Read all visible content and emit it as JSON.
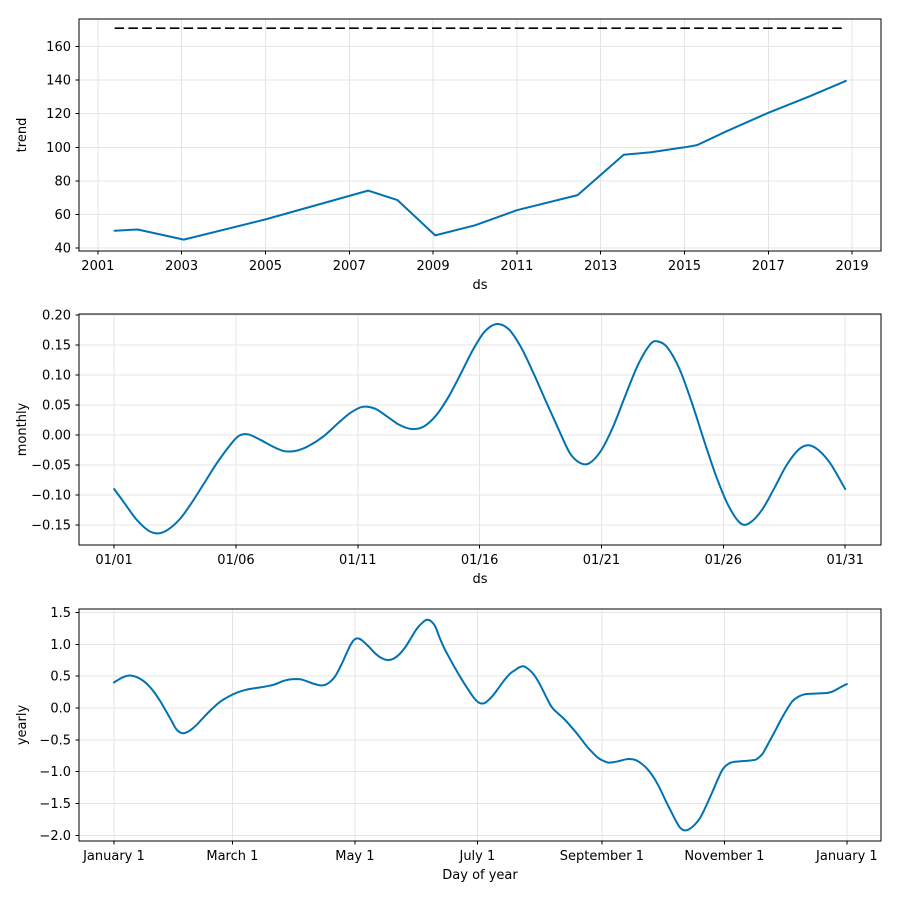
{
  "figure": {
    "kind": "forecast components figure",
    "background": "#ffffff",
    "line_color": "#0072B2",
    "cap_color": "#000000",
    "grid_color": "#e5e5e5",
    "spine_color": "#000000"
  },
  "chart_data": [
    {
      "name": "trend",
      "type": "line",
      "xlabel": "ds",
      "ylabel": "trend",
      "grid": true,
      "legend": "none",
      "xlim": [
        2000.55,
        2019.69
      ],
      "ylim": [
        38.2,
        176.4
      ],
      "xticks": {
        "values": [
          2001,
          2003,
          2005,
          2007,
          2009,
          2011,
          2013,
          2015,
          2017,
          2019
        ],
        "labels": [
          "2001",
          "2003",
          "2005",
          "2007",
          "2009",
          "2011",
          "2013",
          "2015",
          "2017",
          "2019"
        ]
      },
      "yticks": {
        "values": [
          40,
          60,
          80,
          100,
          120,
          140,
          160
        ],
        "labels": [
          "40",
          "60",
          "80",
          "100",
          "120",
          "140",
          "160"
        ]
      },
      "series": [
        {
          "name": "trend",
          "color": "#0072B2",
          "width": 2,
          "smooth": false,
          "points": [
            [
              2001.4,
              50.3
            ],
            [
              2001.95,
              51.0
            ],
            [
              2003.05,
              45.0
            ],
            [
              2005.0,
              57.0
            ],
            [
              2007.45,
              74.2
            ],
            [
              2008.15,
              68.5
            ],
            [
              2009.05,
              47.5
            ],
            [
              2010.0,
              53.5
            ],
            [
              2011.0,
              62.5
            ],
            [
              2012.45,
              71.5
            ],
            [
              2013.55,
              95.5
            ],
            [
              2014.2,
              97.0
            ],
            [
              2015.0,
              100.0
            ],
            [
              2015.3,
              101.3
            ],
            [
              2016.0,
              109.5
            ],
            [
              2017.0,
              120.5
            ],
            [
              2018.0,
              130.5
            ],
            [
              2018.85,
              139.5
            ]
          ]
        }
      ],
      "overlays": [
        {
          "name": "capacity-line",
          "style": "dashed",
          "color": "#000000",
          "width": 1.6,
          "y": 170.9,
          "x_range": [
            2001.4,
            2018.85
          ]
        }
      ]
    },
    {
      "name": "monthly",
      "type": "line",
      "xlabel": "ds",
      "ylabel": "monthly",
      "grid": true,
      "legend": "none",
      "xlim": [
        -0.44,
        32.47
      ],
      "ylim": [
        -0.1833,
        0.2017
      ],
      "xticks": {
        "values": [
          1,
          6,
          11,
          16,
          21,
          26,
          31
        ],
        "labels": [
          "01/01",
          "01/06",
          "01/11",
          "01/16",
          "01/21",
          "01/26",
          "01/31"
        ]
      },
      "yticks": {
        "values": [
          0.2,
          0.15,
          0.1,
          0.05,
          0.0,
          -0.05,
          -0.1,
          -0.15
        ],
        "labels": [
          "0.20",
          "0.15",
          "0.10",
          "0.05",
          "0.00",
          "−0.05",
          "−0.10",
          "−0.15"
        ]
      },
      "series": [
        {
          "name": "monthly",
          "color": "#0072B2",
          "width": 2,
          "smooth": true,
          "points": [
            [
              1.0,
              -0.09
            ],
            [
              1.4,
              -0.112
            ],
            [
              1.9,
              -0.14
            ],
            [
              2.4,
              -0.159
            ],
            [
              2.8,
              -0.164
            ],
            [
              3.2,
              -0.158
            ],
            [
              3.7,
              -0.14
            ],
            [
              4.2,
              -0.112
            ],
            [
              4.7,
              -0.08
            ],
            [
              5.2,
              -0.048
            ],
            [
              5.7,
              -0.02
            ],
            [
              6.1,
              -0.002
            ],
            [
              6.5,
              0.001
            ],
            [
              7.0,
              -0.008
            ],
            [
              7.5,
              -0.019
            ],
            [
              8.0,
              -0.027
            ],
            [
              8.5,
              -0.026
            ],
            [
              9.0,
              -0.018
            ],
            [
              9.6,
              -0.002
            ],
            [
              10.2,
              0.02
            ],
            [
              10.7,
              0.037
            ],
            [
              11.2,
              0.047
            ],
            [
              11.7,
              0.044
            ],
            [
              12.2,
              0.031
            ],
            [
              12.7,
              0.017
            ],
            [
              13.2,
              0.01
            ],
            [
              13.7,
              0.014
            ],
            [
              14.2,
              0.032
            ],
            [
              14.7,
              0.062
            ],
            [
              15.2,
              0.1
            ],
            [
              15.7,
              0.14
            ],
            [
              16.2,
              0.172
            ],
            [
              16.7,
              0.185
            ],
            [
              17.2,
              0.176
            ],
            [
              17.7,
              0.146
            ],
            [
              18.2,
              0.104
            ],
            [
              18.7,
              0.058
            ],
            [
              19.2,
              0.013
            ],
            [
              19.7,
              -0.03
            ],
            [
              20.1,
              -0.046
            ],
            [
              20.5,
              -0.047
            ],
            [
              21.0,
              -0.025
            ],
            [
              21.5,
              0.016
            ],
            [
              22.0,
              0.068
            ],
            [
              22.5,
              0.117
            ],
            [
              23.0,
              0.151
            ],
            [
              23.3,
              0.156
            ],
            [
              23.7,
              0.146
            ],
            [
              24.2,
              0.11
            ],
            [
              24.7,
              0.055
            ],
            [
              25.2,
              -0.008
            ],
            [
              25.7,
              -0.068
            ],
            [
              26.2,
              -0.117
            ],
            [
              26.7,
              -0.147
            ],
            [
              27.1,
              -0.146
            ],
            [
              27.6,
              -0.124
            ],
            [
              28.1,
              -0.088
            ],
            [
              28.6,
              -0.05
            ],
            [
              29.1,
              -0.024
            ],
            [
              29.5,
              -0.017
            ],
            [
              29.9,
              -0.025
            ],
            [
              30.4,
              -0.048
            ],
            [
              31.0,
              -0.09
            ]
          ]
        }
      ],
      "overlays": []
    },
    {
      "name": "yearly",
      "type": "line",
      "xlabel": "Day of year",
      "ylabel": "yearly",
      "grid": true,
      "legend": "none",
      "xlim": [
        -17.4,
        382.0
      ],
      "ylim": [
        -2.088,
        1.554
      ],
      "xticks": {
        "values": [
          0,
          59,
          120,
          181,
          243,
          304,
          365
        ],
        "labels": [
          "January 1",
          "March 1",
          "May 1",
          "July 1",
          "September 1",
          "November 1",
          "January 1"
        ]
      },
      "yticks": {
        "values": [
          1.5,
          1.0,
          0.5,
          0.0,
          -0.5,
          -1.0,
          -1.5,
          -2.0
        ],
        "labels": [
          "1.5",
          "1.0",
          "0.5",
          "0.0",
          "−0.5",
          "−1.0",
          "−1.5",
          "−2.0"
        ]
      },
      "series": [
        {
          "name": "yearly",
          "color": "#0072B2",
          "width": 2,
          "smooth": true,
          "points": [
            [
              0,
              0.4
            ],
            [
              3,
              0.46
            ],
            [
              6,
              0.5
            ],
            [
              8,
              0.51
            ],
            [
              11,
              0.49
            ],
            [
              14,
              0.44
            ],
            [
              17,
              0.36
            ],
            [
              20,
              0.25
            ],
            [
              23,
              0.11
            ],
            [
              26,
              -0.05
            ],
            [
              29,
              -0.22
            ],
            [
              31,
              -0.33
            ],
            [
              33,
              -0.385
            ],
            [
              35,
              -0.395
            ],
            [
              38,
              -0.35
            ],
            [
              41,
              -0.27
            ],
            [
              44,
              -0.17
            ],
            [
              47,
              -0.07
            ],
            [
              50,
              0.02
            ],
            [
              53,
              0.1
            ],
            [
              56,
              0.16
            ],
            [
              59,
              0.21
            ],
            [
              62,
              0.25
            ],
            [
              65,
              0.28
            ],
            [
              68,
              0.3
            ],
            [
              72,
              0.32
            ],
            [
              76,
              0.34
            ],
            [
              80,
              0.37
            ],
            [
              84,
              0.42
            ],
            [
              87,
              0.445
            ],
            [
              90,
              0.455
            ],
            [
              93,
              0.45
            ],
            [
              96,
              0.42
            ],
            [
              99,
              0.385
            ],
            [
              102,
              0.36
            ],
            [
              104,
              0.355
            ],
            [
              106,
              0.375
            ],
            [
              108,
              0.42
            ],
            [
              110,
              0.49
            ],
            [
              112,
              0.6
            ],
            [
              114,
              0.73
            ],
            [
              116,
              0.87
            ],
            [
              118,
              1.0
            ],
            [
              120,
              1.08
            ],
            [
              122,
              1.09
            ],
            [
              124,
              1.05
            ],
            [
              127,
              0.96
            ],
            [
              130,
              0.86
            ],
            [
              133,
              0.79
            ],
            [
              136,
              0.755
            ],
            [
              139,
              0.77
            ],
            [
              142,
              0.84
            ],
            [
              145,
              0.95
            ],
            [
              148,
              1.1
            ],
            [
              151,
              1.25
            ],
            [
              154,
              1.35
            ],
            [
              156,
              1.385
            ],
            [
              158,
              1.36
            ],
            [
              160,
              1.28
            ],
            [
              162,
              1.12
            ],
            [
              164,
              0.97
            ],
            [
              167,
              0.79
            ],
            [
              170,
              0.62
            ],
            [
              173,
              0.46
            ],
            [
              176,
              0.31
            ],
            [
              179,
              0.17
            ],
            [
              181,
              0.1
            ],
            [
              183,
              0.07
            ],
            [
              185,
              0.085
            ],
            [
              188,
              0.17
            ],
            [
              191,
              0.29
            ],
            [
              194,
              0.42
            ],
            [
              197,
              0.53
            ],
            [
              200,
              0.6
            ],
            [
              202,
              0.64
            ],
            [
              204,
              0.655
            ],
            [
              206,
              0.62
            ],
            [
              209,
              0.53
            ],
            [
              212,
              0.38
            ],
            [
              215,
              0.19
            ],
            [
              218,
              0.015
            ],
            [
              221,
              -0.08
            ],
            [
              224,
              -0.165
            ],
            [
              227,
              -0.27
            ],
            [
              230,
              -0.38
            ],
            [
              233,
              -0.5
            ],
            [
              236,
              -0.62
            ],
            [
              239,
              -0.72
            ],
            [
              241,
              -0.78
            ],
            [
              243,
              -0.82
            ],
            [
              246,
              -0.855
            ],
            [
              249,
              -0.85
            ],
            [
              252,
              -0.83
            ],
            [
              255,
              -0.805
            ],
            [
              257,
              -0.8
            ],
            [
              260,
              -0.82
            ],
            [
              263,
              -0.88
            ],
            [
              266,
              -0.97
            ],
            [
              269,
              -1.1
            ],
            [
              272,
              -1.27
            ],
            [
              275,
              -1.47
            ],
            [
              278,
              -1.66
            ],
            [
              280,
              -1.78
            ],
            [
              282,
              -1.88
            ],
            [
              284,
              -1.92
            ],
            [
              286,
              -1.91
            ],
            [
              289,
              -1.84
            ],
            [
              292,
              -1.72
            ],
            [
              295,
              -1.53
            ],
            [
              298,
              -1.32
            ],
            [
              301,
              -1.1
            ],
            [
              303,
              -0.97
            ],
            [
              305,
              -0.9
            ],
            [
              307,
              -0.86
            ],
            [
              309,
              -0.845
            ],
            [
              312,
              -0.835
            ],
            [
              315,
              -0.83
            ],
            [
              318,
              -0.82
            ],
            [
              320,
              -0.805
            ],
            [
              323,
              -0.72
            ],
            [
              326,
              -0.55
            ],
            [
              329,
              -0.375
            ],
            [
              332,
              -0.195
            ],
            [
              335,
              -0.03
            ],
            [
              338,
              0.11
            ],
            [
              341,
              0.18
            ],
            [
              344,
              0.215
            ],
            [
              348,
              0.225
            ],
            [
              352,
              0.23
            ],
            [
              355,
              0.235
            ],
            [
              358,
              0.26
            ],
            [
              361,
              0.31
            ],
            [
              363,
              0.345
            ],
            [
              365,
              0.375
            ]
          ]
        }
      ],
      "overlays": []
    }
  ]
}
